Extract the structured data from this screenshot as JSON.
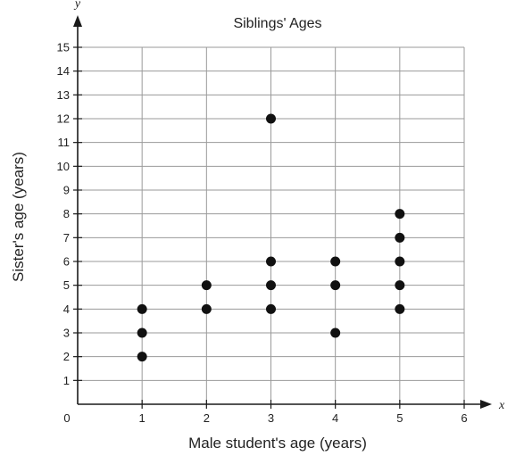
{
  "chart_data": {
    "type": "scatter",
    "title": "Siblings' Ages",
    "xlabel": "Male student's age (years)",
    "ylabel": "Sister's age (years)",
    "x_axis_letter": "x",
    "y_axis_letter": "y",
    "origin_label": "0",
    "xlim": [
      0,
      6
    ],
    "ylim": [
      0,
      15
    ],
    "x_ticks": [
      1,
      2,
      3,
      4,
      5,
      6
    ],
    "y_ticks": [
      1,
      2,
      3,
      4,
      5,
      6,
      7,
      8,
      9,
      10,
      11,
      12,
      13,
      14,
      15
    ],
    "grid": true,
    "marker_color": "#111111",
    "points": [
      {
        "x": 1,
        "y": 2
      },
      {
        "x": 1,
        "y": 3
      },
      {
        "x": 1,
        "y": 4
      },
      {
        "x": 2,
        "y": 4
      },
      {
        "x": 2,
        "y": 5
      },
      {
        "x": 3,
        "y": 4
      },
      {
        "x": 3,
        "y": 5
      },
      {
        "x": 3,
        "y": 6
      },
      {
        "x": 3,
        "y": 12
      },
      {
        "x": 4,
        "y": 3
      },
      {
        "x": 4,
        "y": 5
      },
      {
        "x": 4,
        "y": 6
      },
      {
        "x": 5,
        "y": 4
      },
      {
        "x": 5,
        "y": 5
      },
      {
        "x": 5,
        "y": 6
      },
      {
        "x": 5,
        "y": 7
      },
      {
        "x": 5,
        "y": 8
      }
    ]
  }
}
